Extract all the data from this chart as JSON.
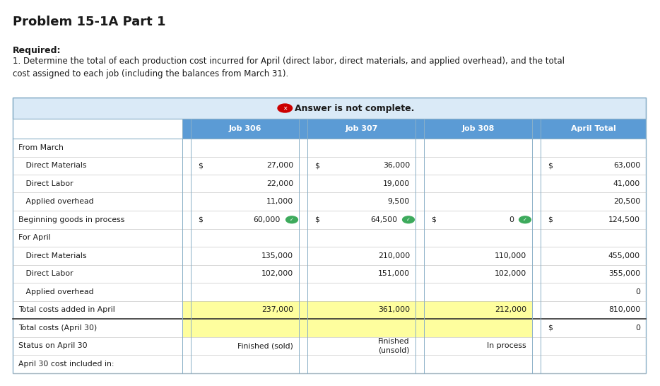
{
  "title": "Problem 15-1A Part 1",
  "required_label": "Required:",
  "description_line1": "1. Determine the total of each production cost incurred for April (direct labor, direct materials, and applied overhead), and the total",
  "description_line2": "cost assigned to each job (including the balances from March 31).",
  "answer_banner": "Answer is not complete.",
  "header_bg": "#5b9bd5",
  "header_fg": "#ffffff",
  "banner_bg": "#daeaf7",
  "yellow_bg": "#fefe9e",
  "rows": [
    {
      "label": "From March",
      "indent": false,
      "j306_dollar": false,
      "j306": "",
      "j307_dollar": false,
      "j307": "",
      "j308_dollar": false,
      "j308": "",
      "apr_dollar": false,
      "apr": "",
      "yellow": false,
      "check306": false,
      "check307": false,
      "check308": false,
      "thick_bottom": false
    },
    {
      "label": "   Direct Materials",
      "indent": true,
      "j306_dollar": true,
      "j306": "27,000",
      "j307_dollar": true,
      "j307": "36,000",
      "j308_dollar": false,
      "j308": "",
      "apr_dollar": true,
      "apr": "63,000",
      "yellow": false,
      "check306": false,
      "check307": false,
      "check308": false,
      "thick_bottom": false
    },
    {
      "label": "   Direct Labor",
      "indent": true,
      "j306_dollar": false,
      "j306": "22,000",
      "j307_dollar": false,
      "j307": "19,000",
      "j308_dollar": false,
      "j308": "",
      "apr_dollar": false,
      "apr": "41,000",
      "yellow": false,
      "check306": false,
      "check307": false,
      "check308": false,
      "thick_bottom": false
    },
    {
      "label": "   Applied overhead",
      "indent": true,
      "j306_dollar": false,
      "j306": "11,000",
      "j307_dollar": false,
      "j307": "9,500",
      "j308_dollar": false,
      "j308": "",
      "apr_dollar": false,
      "apr": "20,500",
      "yellow": false,
      "check306": false,
      "check307": false,
      "check308": false,
      "thick_bottom": false
    },
    {
      "label": "Beginning goods in process",
      "indent": false,
      "j306_dollar": true,
      "j306": "60,000",
      "j307_dollar": true,
      "j307": "64,500",
      "j308_dollar": true,
      "j308": "0",
      "apr_dollar": true,
      "apr": "124,500",
      "yellow": false,
      "check306": true,
      "check307": true,
      "check308": true,
      "thick_bottom": false
    },
    {
      "label": "For April",
      "indent": false,
      "j306_dollar": false,
      "j306": "",
      "j307_dollar": false,
      "j307": "",
      "j308_dollar": false,
      "j308": "",
      "apr_dollar": false,
      "apr": "",
      "yellow": false,
      "check306": false,
      "check307": false,
      "check308": false,
      "thick_bottom": false
    },
    {
      "label": "   Direct Materials",
      "indent": true,
      "j306_dollar": false,
      "j306": "135,000",
      "j307_dollar": false,
      "j307": "210,000",
      "j308_dollar": false,
      "j308": "110,000",
      "apr_dollar": false,
      "apr": "455,000",
      "yellow": false,
      "check306": false,
      "check307": false,
      "check308": false,
      "thick_bottom": false
    },
    {
      "label": "   Direct Labor",
      "indent": true,
      "j306_dollar": false,
      "j306": "102,000",
      "j307_dollar": false,
      "j307": "151,000",
      "j308_dollar": false,
      "j308": "102,000",
      "apr_dollar": false,
      "apr": "355,000",
      "yellow": false,
      "check306": false,
      "check307": false,
      "check308": false,
      "thick_bottom": false
    },
    {
      "label": "   Applied overhead",
      "indent": true,
      "j306_dollar": false,
      "j306": "",
      "j307_dollar": false,
      "j307": "",
      "j308_dollar": false,
      "j308": "",
      "apr_dollar": false,
      "apr": "0",
      "yellow": false,
      "check306": false,
      "check307": false,
      "check308": false,
      "thick_bottom": false
    },
    {
      "label": "Total costs added in April",
      "indent": false,
      "j306_dollar": false,
      "j306": "237,000",
      "j307_dollar": false,
      "j307": "361,000",
      "j308_dollar": false,
      "j308": "212,000",
      "apr_dollar": false,
      "apr": "810,000",
      "yellow": true,
      "check306": false,
      "check307": false,
      "check308": false,
      "thick_bottom": true
    },
    {
      "label": "Total costs (April 30)",
      "indent": false,
      "j306_dollar": false,
      "j306": "",
      "j307_dollar": false,
      "j307": "",
      "j308_dollar": false,
      "j308": "",
      "apr_dollar": true,
      "apr": "0",
      "yellow": true,
      "check306": false,
      "check307": false,
      "check308": false,
      "thick_bottom": false
    },
    {
      "label": "Status on April 30",
      "indent": false,
      "j306_dollar": false,
      "j306": "Finished (sold)",
      "j307_dollar": false,
      "j307": "Finished\n(unsold)",
      "j308_dollar": false,
      "j308": "In process",
      "apr_dollar": false,
      "apr": "",
      "yellow": false,
      "check306": false,
      "check307": false,
      "check308": false,
      "thick_bottom": false
    },
    {
      "label": "April 30 cost included in:",
      "indent": false,
      "j306_dollar": false,
      "j306": "",
      "j307_dollar": false,
      "j307": "",
      "j308_dollar": false,
      "j308": "",
      "apr_dollar": false,
      "apr": "",
      "yellow": false,
      "check306": false,
      "check307": false,
      "check308": false,
      "thick_bottom": false
    }
  ],
  "fig_bg": "#ffffff",
  "text_color": "#1a1a1a"
}
